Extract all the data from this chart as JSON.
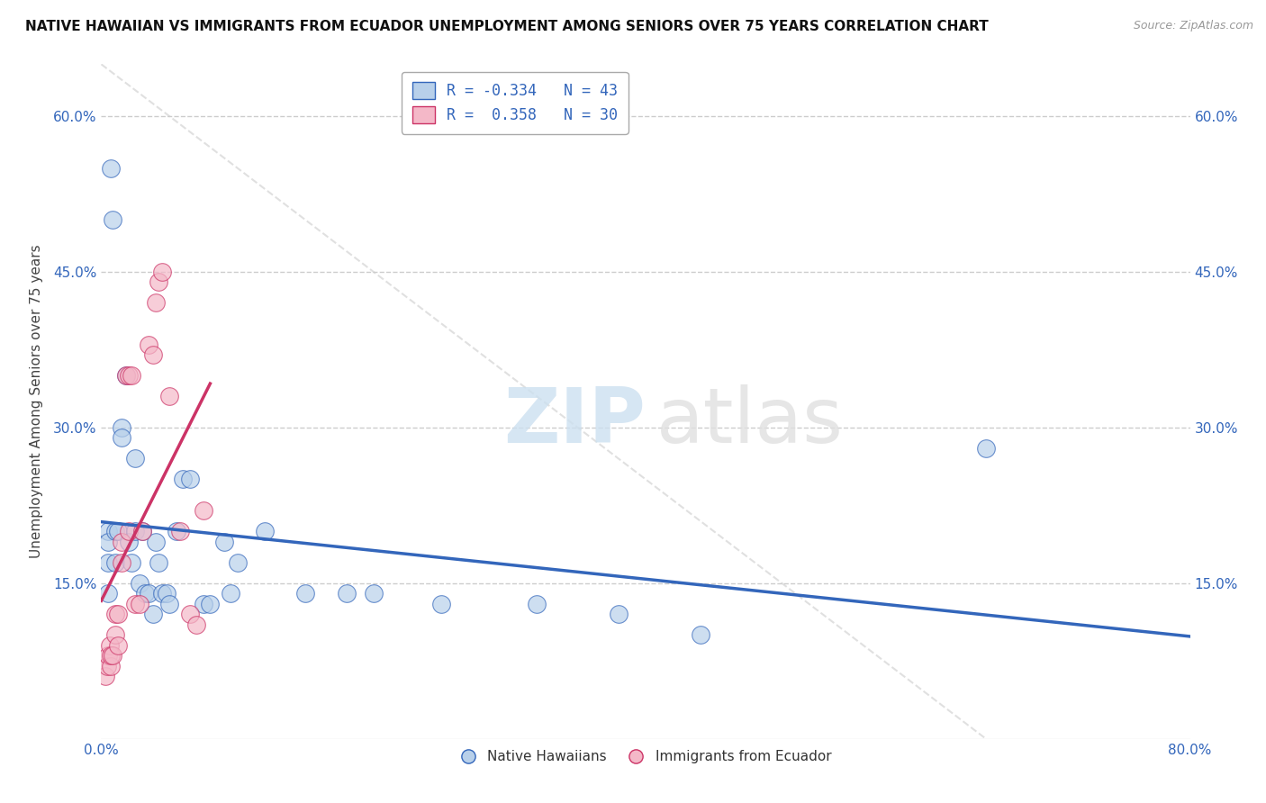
{
  "title": "NATIVE HAWAIIAN VS IMMIGRANTS FROM ECUADOR UNEMPLOYMENT AMONG SENIORS OVER 75 YEARS CORRELATION CHART",
  "source": "Source: ZipAtlas.com",
  "ylabel": "Unemployment Among Seniors over 75 years",
  "xlim": [
    0.0,
    0.8
  ],
  "ylim": [
    0.0,
    0.65
  ],
  "r_blue": -0.334,
  "n_blue": 43,
  "r_pink": 0.358,
  "n_pink": 30,
  "blue_color": "#b8d0ea",
  "pink_color": "#f4b8c8",
  "line_blue": "#3366bb",
  "line_pink": "#cc3366",
  "native_hawaiian_x": [
    0.005,
    0.005,
    0.005,
    0.005,
    0.007,
    0.008,
    0.01,
    0.01,
    0.012,
    0.015,
    0.015,
    0.018,
    0.02,
    0.022,
    0.025,
    0.025,
    0.028,
    0.03,
    0.032,
    0.035,
    0.038,
    0.04,
    0.042,
    0.045,
    0.048,
    0.05,
    0.055,
    0.06,
    0.065,
    0.075,
    0.08,
    0.09,
    0.095,
    0.1,
    0.12,
    0.15,
    0.18,
    0.2,
    0.25,
    0.32,
    0.38,
    0.44,
    0.65
  ],
  "native_hawaiian_y": [
    0.2,
    0.19,
    0.17,
    0.14,
    0.55,
    0.5,
    0.2,
    0.17,
    0.2,
    0.3,
    0.29,
    0.35,
    0.19,
    0.17,
    0.27,
    0.2,
    0.15,
    0.2,
    0.14,
    0.14,
    0.12,
    0.19,
    0.17,
    0.14,
    0.14,
    0.13,
    0.2,
    0.25,
    0.25,
    0.13,
    0.13,
    0.19,
    0.14,
    0.17,
    0.2,
    0.14,
    0.14,
    0.14,
    0.13,
    0.13,
    0.12,
    0.1,
    0.28
  ],
  "ecuador_x": [
    0.003,
    0.004,
    0.005,
    0.006,
    0.007,
    0.007,
    0.008,
    0.01,
    0.01,
    0.012,
    0.012,
    0.015,
    0.015,
    0.018,
    0.02,
    0.02,
    0.022,
    0.025,
    0.028,
    0.03,
    0.035,
    0.038,
    0.04,
    0.042,
    0.045,
    0.05,
    0.058,
    0.065,
    0.07,
    0.075
  ],
  "ecuador_y": [
    0.06,
    0.07,
    0.08,
    0.09,
    0.07,
    0.08,
    0.08,
    0.1,
    0.12,
    0.09,
    0.12,
    0.17,
    0.19,
    0.35,
    0.2,
    0.35,
    0.35,
    0.13,
    0.13,
    0.2,
    0.38,
    0.37,
    0.42,
    0.44,
    0.45,
    0.33,
    0.2,
    0.12,
    0.11,
    0.22
  ],
  "legend_label_blue": "Native Hawaiians",
  "legend_label_pink": "Immigrants from Ecuador"
}
